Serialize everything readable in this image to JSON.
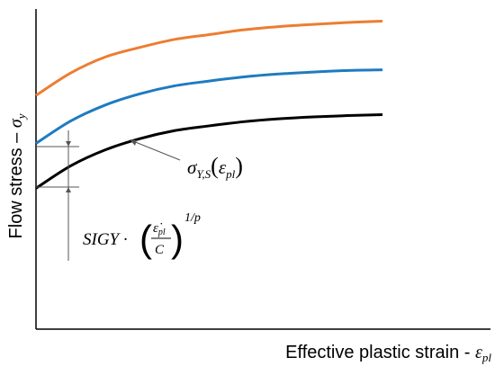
{
  "chart_data": {
    "type": "line",
    "xlabel": "Effective plastic strain - ",
    "xlabel_symbol": "ε",
    "xlabel_sub": "pl",
    "ylabel": "Flow stress – ",
    "ylabel_symbol": "σ",
    "ylabel_sub": "y",
    "grid": false,
    "legend": "none",
    "series": [
      {
        "color": "#ed7d31",
        "x": [
          0,
          0.1,
          0.2,
          0.3,
          0.4,
          0.5,
          0.6,
          0.7,
          0.8,
          0.9,
          1.0
        ],
        "y": [
          0.73,
          0.8,
          0.85,
          0.88,
          0.905,
          0.92,
          0.935,
          0.945,
          0.952,
          0.958,
          0.962
        ]
      },
      {
        "color": "#1f7bc0",
        "x": [
          0,
          0.1,
          0.2,
          0.3,
          0.4,
          0.5,
          0.6,
          0.7,
          0.8,
          0.9,
          1.0
        ],
        "y": [
          0.58,
          0.65,
          0.7,
          0.735,
          0.76,
          0.775,
          0.788,
          0.797,
          0.803,
          0.808,
          0.81
        ]
      },
      {
        "color": "#000000",
        "x": [
          0,
          0.1,
          0.2,
          0.3,
          0.4,
          0.5,
          0.6,
          0.7,
          0.8,
          0.9,
          1.0
        ],
        "y": [
          0.44,
          0.51,
          0.56,
          0.595,
          0.62,
          0.635,
          0.648,
          0.657,
          0.663,
          0.667,
          0.67
        ]
      }
    ],
    "annotations": {
      "static_curve_label": "σY,S(εpl)",
      "rate_term_label": "SIGY · (ε̇pl / C)^(1/p)",
      "rate_term_prefix": "SIGY ·",
      "rate_num": "ε̇",
      "rate_num_sub": "pl",
      "rate_den": "C",
      "rate_exp": "1/p",
      "static_sym": "σ",
      "static_sub": "Y,S",
      "static_arg": "ε",
      "static_arg_sub": "pl"
    }
  }
}
